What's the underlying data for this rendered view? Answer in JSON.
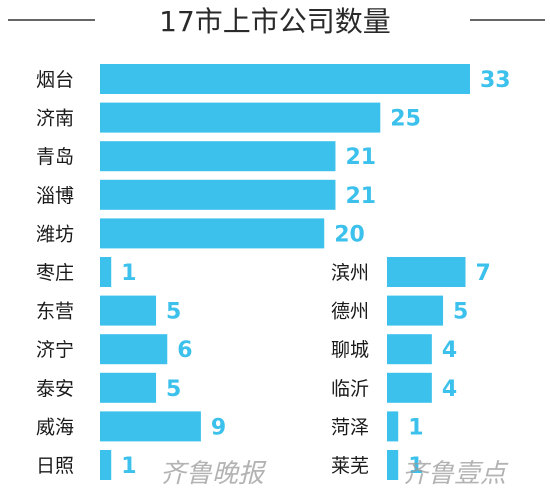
{
  "chart_data": {
    "type": "bar",
    "orientation": "horizontal",
    "title": "17市上市公司数量",
    "categories": [
      "烟台",
      "济南",
      "青岛",
      "淄博",
      "潍坊",
      "枣庄",
      "东营",
      "济宁",
      "泰安",
      "威海",
      "日照",
      "滨州",
      "德州",
      "聊城",
      "临沂",
      "菏泽",
      "莱芜"
    ],
    "values": [
      33,
      25,
      21,
      21,
      20,
      1,
      5,
      6,
      5,
      9,
      1,
      7,
      5,
      4,
      4,
      1,
      1
    ],
    "xlabel": "",
    "ylabel": "",
    "grid": false,
    "legend": "none",
    "bar_color": "#3cc1ec",
    "value_label_color": "#3cc1ec"
  },
  "watermark": {
    "left": "齐鲁晚报",
    "right": "齐鲁壹点"
  },
  "colors": {
    "bar": "#3cc1ec",
    "title_rule": "#333333",
    "text": "#1a1a1a"
  }
}
